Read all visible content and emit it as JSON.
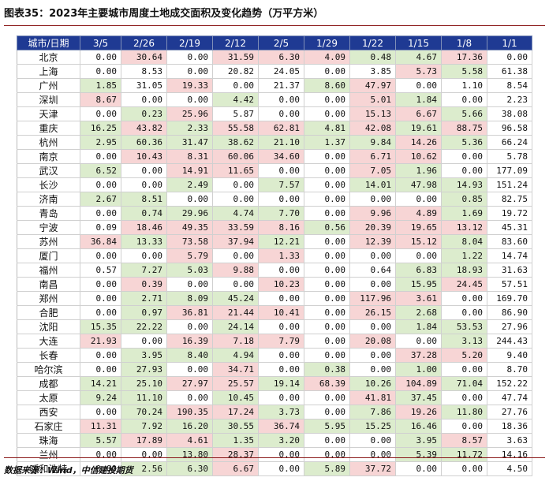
{
  "title": "图表35：2023年主要城市周度土地成交面积及变化趋势（万平方米）",
  "headers": [
    "城市/日期",
    "3/5",
    "2/26",
    "2/19",
    "2/12",
    "2/5",
    "1/29",
    "1/22",
    "1/15",
    "1/8",
    "1/1"
  ],
  "colors": {
    "header_bg": "#1f3a93",
    "high_cell": "#f7d5d5",
    "low_cell": "#dceccd",
    "rule": "#8b1a1a"
  },
  "rows": [
    {
      "city": "北京",
      "values": [
        "0.00",
        "30.64",
        "0.00",
        "31.59",
        "6.30",
        "4.09",
        "0.48",
        "4.67",
        "17.36",
        "0.00"
      ],
      "shade": [
        "",
        "h",
        "",
        "h",
        "h",
        "h",
        "l",
        "l",
        "h",
        ""
      ]
    },
    {
      "city": "上海",
      "values": [
        "0.00",
        "8.53",
        "0.00",
        "20.82",
        "24.05",
        "0.00",
        "3.85",
        "5.73",
        "5.58",
        "61.38"
      ],
      "shade": [
        "",
        "",
        "",
        "",
        "",
        "",
        "",
        "h",
        "l",
        ""
      ]
    },
    {
      "city": "广州",
      "values": [
        "1.85",
        "31.05",
        "19.33",
        "0.00",
        "21.37",
        "8.60",
        "47.97",
        "0.00",
        "1.10",
        "8.54"
      ],
      "shade": [
        "l",
        "",
        "h",
        "",
        "",
        "l",
        "h",
        "",
        "",
        ""
      ]
    },
    {
      "city": "深圳",
      "values": [
        "8.67",
        "0.00",
        "0.00",
        "4.42",
        "0.00",
        "0.00",
        "5.01",
        "1.84",
        "0.00",
        "2.23"
      ],
      "shade": [
        "h",
        "",
        "",
        "l",
        "",
        "",
        "h",
        "l",
        "",
        ""
      ]
    },
    {
      "city": "天津",
      "values": [
        "0.00",
        "0.23",
        "25.96",
        "5.87",
        "0.00",
        "0.00",
        "15.13",
        "6.67",
        "5.66",
        "38.08"
      ],
      "shade": [
        "",
        "l",
        "h",
        "",
        "",
        "",
        "h",
        "h",
        "l",
        ""
      ]
    },
    {
      "city": "重庆",
      "values": [
        "16.25",
        "43.82",
        "2.33",
        "55.58",
        "62.81",
        "4.81",
        "42.08",
        "19.61",
        "88.75",
        "96.58"
      ],
      "shade": [
        "l",
        "h",
        "l",
        "h",
        "h",
        "l",
        "h",
        "l",
        "h",
        ""
      ]
    },
    {
      "city": "杭州",
      "values": [
        "2.95",
        "60.36",
        "31.47",
        "38.62",
        "21.10",
        "1.37",
        "9.84",
        "14.26",
        "5.36",
        "66.24"
      ],
      "shade": [
        "l",
        "l",
        "l",
        "l",
        "l",
        "l",
        "l",
        "h",
        "l",
        ""
      ]
    },
    {
      "city": "南京",
      "values": [
        "0.00",
        "10.43",
        "8.31",
        "60.06",
        "34.60",
        "0.00",
        "6.71",
        "10.62",
        "0.00",
        "5.78"
      ],
      "shade": [
        "",
        "h",
        "h",
        "h",
        "h",
        "",
        "h",
        "h",
        "",
        ""
      ]
    },
    {
      "city": "武汉",
      "values": [
        "6.52",
        "0.00",
        "14.91",
        "11.65",
        "0.00",
        "0.00",
        "7.05",
        "1.96",
        "0.00",
        "177.09"
      ],
      "shade": [
        "l",
        "",
        "h",
        "h",
        "",
        "",
        "h",
        "l",
        "",
        ""
      ]
    },
    {
      "city": "长沙",
      "values": [
        "0.00",
        "0.00",
        "2.49",
        "0.00",
        "7.57",
        "0.00",
        "14.01",
        "47.98",
        "14.93",
        "151.24"
      ],
      "shade": [
        "",
        "",
        "l",
        "",
        "l",
        "",
        "l",
        "l",
        "l",
        ""
      ]
    },
    {
      "city": "济南",
      "values": [
        "2.67",
        "8.51",
        "0.00",
        "0.00",
        "0.00",
        "0.00",
        "0.00",
        "0.00",
        "0.85",
        "82.75"
      ],
      "shade": [
        "l",
        "l",
        "",
        "",
        "",
        "",
        "",
        "",
        "l",
        ""
      ]
    },
    {
      "city": "青岛",
      "values": [
        "0.00",
        "0.74",
        "29.96",
        "4.74",
        "7.70",
        "0.00",
        "9.96",
        "4.89",
        "1.69",
        "19.72"
      ],
      "shade": [
        "",
        "l",
        "l",
        "l",
        "l",
        "",
        "h",
        "h",
        "l",
        ""
      ]
    },
    {
      "city": "宁波",
      "values": [
        "0.09",
        "18.46",
        "49.35",
        "33.59",
        "8.16",
        "0.56",
        "20.39",
        "19.65",
        "13.12",
        "45.31"
      ],
      "shade": [
        "",
        "h",
        "h",
        "h",
        "h",
        "l",
        "h",
        "h",
        "h",
        ""
      ]
    },
    {
      "city": "苏州",
      "values": [
        "36.84",
        "13.33",
        "73.58",
        "37.94",
        "12.21",
        "0.00",
        "12.39",
        "15.12",
        "8.04",
        "83.60"
      ],
      "shade": [
        "h",
        "l",
        "h",
        "h",
        "l",
        "",
        "h",
        "h",
        "l",
        ""
      ]
    },
    {
      "city": "厦门",
      "values": [
        "0.00",
        "0.00",
        "5.79",
        "0.00",
        "1.33",
        "0.00",
        "0.00",
        "0.00",
        "1.22",
        "14.74"
      ],
      "shade": [
        "",
        "",
        "h",
        "",
        "h",
        "",
        "",
        "",
        "l",
        ""
      ]
    },
    {
      "city": "福州",
      "values": [
        "0.57",
        "7.27",
        "5.03",
        "9.88",
        "0.00",
        "0.00",
        "0.64",
        "6.83",
        "18.93",
        "31.63"
      ],
      "shade": [
        "",
        "l",
        "l",
        "h",
        "",
        "",
        "",
        "l",
        "l",
        ""
      ]
    },
    {
      "city": "南昌",
      "values": [
        "0.00",
        "0.39",
        "0.00",
        "0.00",
        "10.23",
        "0.00",
        "0.00",
        "15.95",
        "24.45",
        "57.51"
      ],
      "shade": [
        "",
        "h",
        "",
        "",
        "h",
        "",
        "",
        "l",
        "h",
        ""
      ]
    },
    {
      "city": "郑州",
      "values": [
        "0.00",
        "2.71",
        "8.09",
        "45.24",
        "0.00",
        "0.00",
        "117.96",
        "3.61",
        "0.00",
        "169.70"
      ],
      "shade": [
        "",
        "l",
        "l",
        "l",
        "",
        "",
        "h",
        "h",
        "",
        ""
      ]
    },
    {
      "city": "合肥",
      "values": [
        "0.00",
        "0.97",
        "36.81",
        "21.44",
        "10.41",
        "0.00",
        "26.15",
        "2.68",
        "0.00",
        "86.90"
      ],
      "shade": [
        "",
        "l",
        "h",
        "h",
        "h",
        "",
        "h",
        "l",
        "",
        ""
      ]
    },
    {
      "city": "沈阳",
      "values": [
        "15.35",
        "22.22",
        "0.00",
        "24.14",
        "0.00",
        "0.00",
        "0.00",
        "1.84",
        "53.53",
        "27.96"
      ],
      "shade": [
        "l",
        "l",
        "",
        "l",
        "",
        "",
        "",
        "l",
        "l",
        ""
      ]
    },
    {
      "city": "大连",
      "values": [
        "21.93",
        "0.00",
        "16.39",
        "7.18",
        "7.79",
        "0.00",
        "20.08",
        "0.00",
        "3.13",
        "244.43"
      ],
      "shade": [
        "h",
        "",
        "h",
        "h",
        "h",
        "",
        "h",
        "",
        "l",
        ""
      ]
    },
    {
      "city": "长春",
      "values": [
        "0.00",
        "3.95",
        "8.40",
        "4.94",
        "0.00",
        "0.00",
        "0.00",
        "37.28",
        "5.20",
        "9.40"
      ],
      "shade": [
        "",
        "l",
        "l",
        "l",
        "",
        "",
        "",
        "h",
        "h",
        ""
      ]
    },
    {
      "city": "哈尔滨",
      "values": [
        "0.00",
        "27.93",
        "0.00",
        "34.71",
        "0.00",
        "0.38",
        "0.00",
        "1.00",
        "0.00",
        "8.70"
      ],
      "shade": [
        "",
        "l",
        "",
        "h",
        "",
        "l",
        "",
        "l",
        "",
        ""
      ]
    },
    {
      "city": "成都",
      "values": [
        "14.21",
        "25.10",
        "27.97",
        "25.57",
        "19.14",
        "68.39",
        "10.26",
        "104.89",
        "71.04",
        "152.22"
      ],
      "shade": [
        "l",
        "l",
        "h",
        "h",
        "l",
        "h",
        "l",
        "h",
        "l",
        ""
      ]
    },
    {
      "city": "太原",
      "values": [
        "9.24",
        "11.10",
        "0.00",
        "10.45",
        "0.00",
        "0.00",
        "41.81",
        "37.45",
        "0.00",
        "47.74"
      ],
      "shade": [
        "l",
        "l",
        "",
        "l",
        "",
        "",
        "h",
        "l",
        "",
        ""
      ]
    },
    {
      "city": "西安",
      "values": [
        "0.00",
        "70.24",
        "190.35",
        "17.24",
        "3.73",
        "0.00",
        "7.86",
        "19.26",
        "11.80",
        "27.76"
      ],
      "shade": [
        "",
        "l",
        "h",
        "h",
        "l",
        "",
        "l",
        "h",
        "l",
        ""
      ]
    },
    {
      "city": "石家庄",
      "values": [
        "11.31",
        "7.92",
        "16.20",
        "30.55",
        "36.74",
        "5.95",
        "15.25",
        "16.46",
        "0.00",
        "18.36"
      ],
      "shade": [
        "h",
        "l",
        "l",
        "l",
        "h",
        "l",
        "l",
        "l",
        "",
        ""
      ]
    },
    {
      "city": "珠海",
      "values": [
        "5.57",
        "17.89",
        "4.61",
        "1.35",
        "3.20",
        "0.00",
        "0.00",
        "3.95",
        "8.57",
        "3.63"
      ],
      "shade": [
        "l",
        "h",
        "h",
        "l",
        "l",
        "",
        "",
        "l",
        "h",
        ""
      ]
    },
    {
      "city": "兰州",
      "values": [
        "0.00",
        "0.00",
        "13.80",
        "28.37",
        "0.00",
        "0.00",
        "0.00",
        "5.39",
        "11.72",
        "14.16"
      ],
      "shade": [
        "",
        "",
        "l",
        "h",
        "",
        "",
        "",
        "l",
        "l",
        ""
      ]
    },
    {
      "city": "呼和浩特",
      "values": [
        "0.00",
        "2.56",
        "6.30",
        "6.67",
        "0.00",
        "5.89",
        "37.72",
        "0.00",
        "0.00",
        "4.50"
      ],
      "shade": [
        "",
        "l",
        "l",
        "h",
        "",
        "l",
        "h",
        "",
        "",
        ""
      ]
    }
  ],
  "source": "数据来源：Wind，中信建投期货"
}
